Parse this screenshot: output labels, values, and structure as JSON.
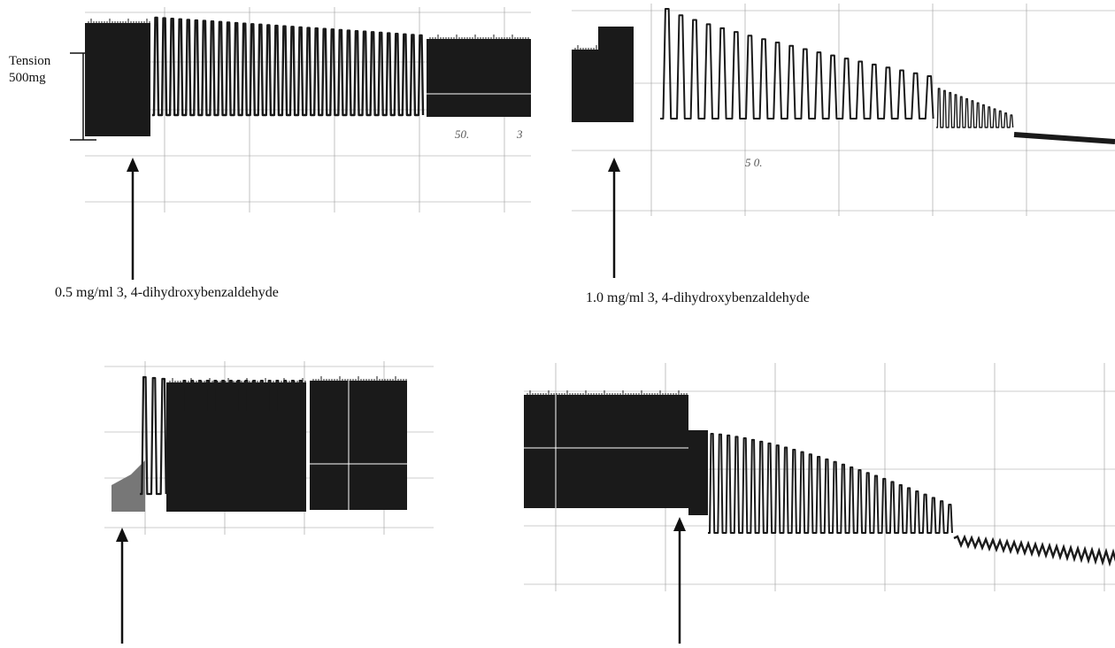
{
  "scale_bar": {
    "label_line1": "Tension",
    "label_line2": "500mg"
  },
  "panels": [
    {
      "id": "panel-1",
      "caption": "0.5 mg/ml  3, 4-dihydroxybenzaldehyde",
      "handwritten_marks": [
        "50.",
        "3"
      ]
    },
    {
      "id": "panel-2",
      "caption": "1.0 mg/ml 3, 4-dihydroxybenzaldehyde",
      "handwritten_marks": [
        "5 0."
      ]
    },
    {
      "id": "panel-3",
      "caption": ""
    },
    {
      "id": "panel-4",
      "caption": ""
    }
  ],
  "colors": {
    "ink": "#1a1a1a",
    "grid": "#9a9a9a",
    "paper": "#ffffff"
  }
}
